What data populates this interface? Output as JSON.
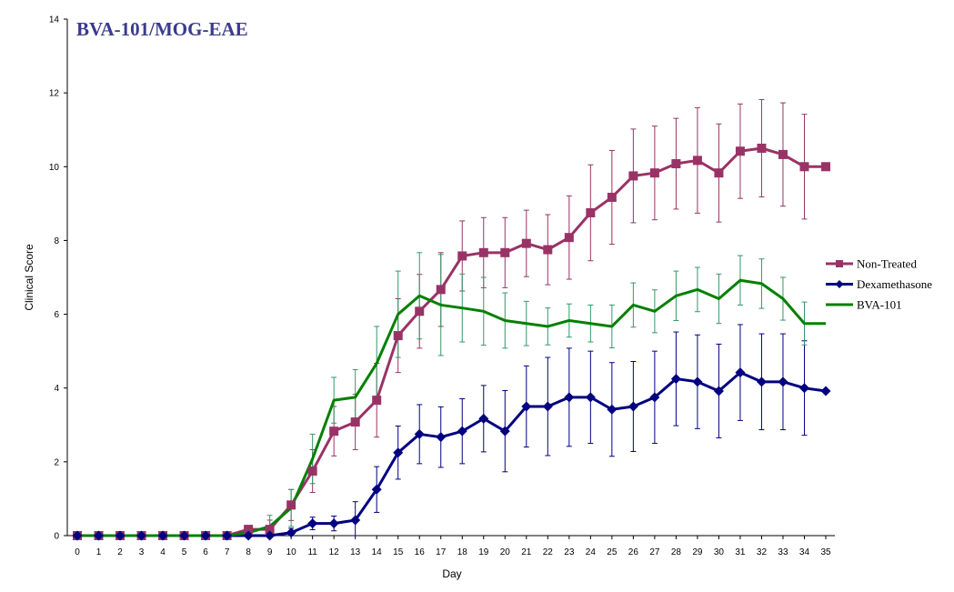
{
  "chart_data": {
    "type": "line",
    "title": "BVA-101/MOG-EAE",
    "xlabel": "Day",
    "ylabel": "Clinical Score",
    "xlim": [
      0,
      35
    ],
    "ylim": [
      0,
      14
    ],
    "x_ticks": [
      0,
      1,
      2,
      3,
      4,
      5,
      6,
      7,
      8,
      9,
      10,
      11,
      12,
      13,
      14,
      15,
      16,
      17,
      18,
      19,
      20,
      21,
      22,
      23,
      24,
      25,
      26,
      27,
      28,
      29,
      30,
      31,
      32,
      33,
      34,
      35
    ],
    "y_ticks": [
      0,
      2,
      4,
      6,
      8,
      10,
      12,
      14
    ],
    "grid": false,
    "legend_position": "right",
    "colors": {
      "title": "#3b3b8f",
      "axis": "#000000"
    },
    "series": [
      {
        "name": "Non-Treated",
        "color": "#993366",
        "marker": "square",
        "x": [
          0,
          1,
          2,
          3,
          4,
          5,
          6,
          7,
          8,
          9,
          10,
          11,
          12,
          13,
          14,
          15,
          16,
          17,
          18,
          19,
          20,
          21,
          22,
          23,
          24,
          25,
          26,
          27,
          28,
          29,
          30,
          31,
          32,
          33,
          34,
          35
        ],
        "values": [
          0,
          0,
          0,
          0,
          0,
          0,
          0,
          0,
          0.17,
          0.17,
          0.83,
          1.75,
          2.83,
          3.08,
          3.67,
          5.42,
          6.08,
          6.67,
          7.58,
          7.67,
          7.67,
          7.92,
          7.75,
          8.08,
          8.75,
          9.17,
          9.75,
          9.83,
          10.08,
          10.17,
          9.83,
          10.42,
          10.5,
          10.33,
          10.0,
          10.0
        ],
        "error": [
          0,
          0,
          0,
          0,
          0,
          0,
          0,
          0,
          0,
          0.25,
          0.42,
          0.58,
          0.67,
          0.75,
          1.0,
          1.0,
          1.0,
          1.0,
          0.95,
          0.95,
          0.95,
          0.9,
          0.95,
          1.13,
          1.3,
          1.27,
          1.27,
          1.27,
          1.23,
          1.43,
          1.33,
          1.28,
          1.32,
          1.4,
          1.42,
          0
        ]
      },
      {
        "name": "Dexamethasone",
        "color": "#000080",
        "marker": "diamond",
        "x": [
          0,
          1,
          2,
          3,
          4,
          5,
          6,
          7,
          8,
          9,
          10,
          11,
          12,
          13,
          14,
          15,
          16,
          17,
          18,
          19,
          20,
          21,
          22,
          23,
          24,
          25,
          26,
          27,
          28,
          29,
          30,
          31,
          32,
          33,
          34,
          35
        ],
        "values": [
          0,
          0,
          0,
          0,
          0,
          0,
          0,
          0,
          0,
          0,
          0.08,
          0.33,
          0.33,
          0.42,
          1.25,
          2.25,
          2.75,
          2.67,
          2.83,
          3.17,
          2.83,
          3.5,
          3.5,
          3.75,
          3.75,
          3.42,
          3.5,
          3.75,
          4.25,
          4.17,
          3.92,
          4.42,
          4.17,
          4.17,
          4.0,
          3.92
        ],
        "error": [
          0,
          0,
          0,
          0,
          0,
          0,
          0,
          0,
          0,
          0,
          0.12,
          0.17,
          0.2,
          0.5,
          0.62,
          0.72,
          0.8,
          0.82,
          0.88,
          0.9,
          1.1,
          1.1,
          1.33,
          1.33,
          1.25,
          1.27,
          1.22,
          1.25,
          1.27,
          1.27,
          1.27,
          1.3,
          1.3,
          1.3,
          1.28,
          0
        ]
      },
      {
        "name": "BVA-101",
        "color": "#008000",
        "error_color": "#339966",
        "marker": "none",
        "x": [
          0,
          1,
          2,
          3,
          4,
          5,
          6,
          7,
          8,
          9,
          10,
          11,
          12,
          13,
          14,
          15,
          16,
          17,
          18,
          19,
          20,
          21,
          22,
          23,
          24,
          25,
          26,
          27,
          28,
          29,
          30,
          31,
          32,
          33,
          34,
          35
        ],
        "values": [
          0,
          0,
          0,
          0,
          0,
          0,
          0,
          0,
          0.08,
          0.25,
          0.75,
          2.08,
          3.67,
          3.75,
          4.67,
          6.0,
          6.5,
          6.25,
          6.17,
          6.08,
          5.83,
          5.75,
          5.67,
          5.83,
          5.75,
          5.67,
          6.25,
          6.08,
          6.5,
          6.67,
          6.42,
          6.92,
          6.83,
          6.42,
          5.75,
          5.75
        ],
        "error": [
          0,
          0,
          0,
          0,
          0,
          0,
          0,
          0,
          0,
          0.3,
          0.5,
          0.67,
          0.62,
          0.75,
          1.0,
          1.17,
          1.17,
          1.37,
          0.92,
          0.92,
          0.75,
          0.6,
          0.5,
          0.45,
          0.5,
          0.58,
          0.6,
          0.58,
          0.67,
          0.6,
          0.67,
          0.67,
          0.67,
          0.58,
          0.58,
          0
        ]
      }
    ]
  }
}
